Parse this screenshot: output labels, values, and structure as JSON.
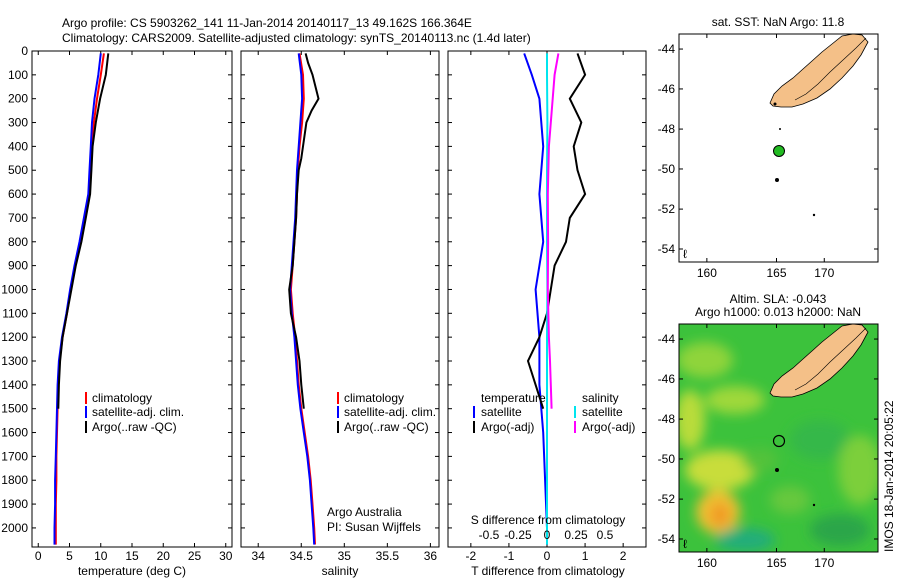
{
  "header": {
    "line1": "Argo profile: CS 5903262_141 11-Jan-2014 20140117_13 49.162S 166.364E",
    "line2": "Climatology: CARS2009. Satellite-adjusted climatology: synTS_20140113.nc (1.4d later)"
  },
  "colors": {
    "climatology": "#ff0000",
    "satellite": "#0000ff",
    "argo": "#000000",
    "s_satellite": "#00e5ee",
    "s_argo": "#ff00ff",
    "land": "#f4c088"
  },
  "chart_data": [
    {
      "id": "temperature",
      "type": "line",
      "xlabel": "temperature (deg C)",
      "ylabel": "",
      "xlim": [
        -1,
        31
      ],
      "ylim": [
        2080,
        0
      ],
      "xticks": [
        0,
        5,
        10,
        15,
        20,
        25,
        30
      ],
      "yticks": [
        0,
        100,
        200,
        300,
        400,
        500,
        600,
        700,
        800,
        900,
        1000,
        1100,
        1200,
        1300,
        1400,
        1500,
        1600,
        1700,
        1800,
        1900,
        2000
      ],
      "legend": [
        "climatology",
        "satellite-adj. clim.",
        "Argo(..raw -QC)"
      ],
      "series": [
        {
          "name": "climatology",
          "color": "#ff0000",
          "points": [
            [
              10.5,
              10
            ],
            [
              10.0,
              100
            ],
            [
              9.4,
              200
            ],
            [
              8.9,
              300
            ],
            [
              8.6,
              400
            ],
            [
              8.4,
              500
            ],
            [
              8.1,
              600
            ],
            [
              7.4,
              700
            ],
            [
              6.7,
              800
            ],
            [
              5.9,
              900
            ],
            [
              5.2,
              1000
            ],
            [
              4.6,
              1100
            ],
            [
              3.9,
              1200
            ],
            [
              3.4,
              1300
            ],
            [
              3.2,
              1400
            ],
            [
              3.1,
              1500
            ],
            [
              3.0,
              1600
            ],
            [
              2.9,
              1700
            ],
            [
              2.9,
              1800
            ],
            [
              2.8,
              1900
            ],
            [
              2.8,
              2000
            ],
            [
              2.8,
              2070
            ]
          ]
        },
        {
          "name": "satellite-adj. clim.",
          "color": "#0000ff",
          "points": [
            [
              10.0,
              10
            ],
            [
              9.6,
              100
            ],
            [
              9.0,
              200
            ],
            [
              8.6,
              300
            ],
            [
              8.4,
              400
            ],
            [
              8.2,
              500
            ],
            [
              8.0,
              600
            ],
            [
              7.3,
              700
            ],
            [
              6.6,
              800
            ],
            [
              5.8,
              900
            ],
            [
              5.1,
              1000
            ],
            [
              4.5,
              1100
            ],
            [
              3.8,
              1200
            ],
            [
              3.3,
              1300
            ],
            [
              3.1,
              1400
            ],
            [
              3.0,
              1500
            ],
            [
              2.9,
              1600
            ],
            [
              2.8,
              1700
            ],
            [
              2.7,
              1800
            ],
            [
              2.7,
              1900
            ],
            [
              2.6,
              2000
            ],
            [
              2.6,
              2070
            ]
          ]
        },
        {
          "name": "Argo(..raw -QC)",
          "color": "#000000",
          "points": [
            [
              11.2,
              10
            ],
            [
              10.8,
              100
            ],
            [
              9.9,
              200
            ],
            [
              9.2,
              300
            ],
            [
              8.7,
              400
            ],
            [
              8.5,
              500
            ],
            [
              8.3,
              600
            ],
            [
              7.6,
              700
            ],
            [
              6.9,
              800
            ],
            [
              6.0,
              900
            ],
            [
              5.3,
              1000
            ],
            [
              4.6,
              1100
            ],
            [
              3.9,
              1200
            ],
            [
              3.5,
              1300
            ],
            [
              3.3,
              1400
            ],
            [
              3.2,
              1500
            ]
          ]
        }
      ]
    },
    {
      "id": "salinity",
      "type": "line",
      "xlabel": "salinity",
      "ylabel": "",
      "xlim": [
        33.8,
        36.1
      ],
      "ylim": [
        2080,
        0
      ],
      "xticks": [
        34,
        34.5,
        35,
        35.5,
        36
      ],
      "legend": [
        "climatology",
        "satellite-adj. clim.",
        "Argo(..raw -QC)"
      ],
      "annotation": [
        "Argo Australia",
        "PI: Susan Wijffels"
      ],
      "series": [
        {
          "name": "climatology",
          "color": "#ff0000",
          "points": [
            [
              34.48,
              10
            ],
            [
              34.52,
              100
            ],
            [
              34.53,
              200
            ],
            [
              34.51,
              300
            ],
            [
              34.48,
              400
            ],
            [
              34.46,
              500
            ],
            [
              34.45,
              600
            ],
            [
              34.44,
              700
            ],
            [
              34.42,
              800
            ],
            [
              34.4,
              900
            ],
            [
              34.38,
              1000
            ],
            [
              34.4,
              1100
            ],
            [
              34.43,
              1200
            ],
            [
              34.45,
              1300
            ],
            [
              34.47,
              1400
            ],
            [
              34.5,
              1500
            ],
            [
              34.54,
              1600
            ],
            [
              34.58,
              1700
            ],
            [
              34.61,
              1800
            ],
            [
              34.63,
              1900
            ],
            [
              34.65,
              2000
            ],
            [
              34.66,
              2070
            ]
          ]
        },
        {
          "name": "satellite-adj. clim.",
          "color": "#0000ff",
          "points": [
            [
              34.47,
              10
            ],
            [
              34.5,
              100
            ],
            [
              34.51,
              200
            ],
            [
              34.49,
              300
            ],
            [
              34.47,
              400
            ],
            [
              34.45,
              500
            ],
            [
              34.44,
              600
            ],
            [
              34.43,
              700
            ],
            [
              34.41,
              800
            ],
            [
              34.39,
              900
            ],
            [
              34.37,
              1000
            ],
            [
              34.39,
              1100
            ],
            [
              34.42,
              1200
            ],
            [
              34.44,
              1300
            ],
            [
              34.46,
              1400
            ],
            [
              34.49,
              1500
            ],
            [
              34.53,
              1600
            ],
            [
              34.57,
              1700
            ],
            [
              34.6,
              1800
            ],
            [
              34.62,
              1900
            ],
            [
              34.64,
              2000
            ],
            [
              34.65,
              2070
            ]
          ]
        },
        {
          "name": "Argo(..raw -QC)",
          "color": "#000000",
          "points": [
            [
              34.55,
              10
            ],
            [
              34.58,
              50
            ],
            [
              34.63,
              100
            ],
            [
              34.7,
              200
            ],
            [
              34.62,
              250
            ],
            [
              34.56,
              300
            ],
            [
              34.52,
              400
            ],
            [
              34.5,
              450
            ],
            [
              34.47,
              500
            ],
            [
              34.45,
              600
            ],
            [
              34.44,
              700
            ],
            [
              34.42,
              800
            ],
            [
              34.4,
              900
            ],
            [
              34.36,
              1000
            ],
            [
              34.38,
              1100
            ],
            [
              34.44,
              1200
            ],
            [
              34.48,
              1300
            ],
            [
              34.5,
              1400
            ],
            [
              34.53,
              1500
            ]
          ]
        }
      ]
    },
    {
      "id": "difference",
      "type": "line",
      "xlabel": "T difference from climatology",
      "top_label": "S difference from climatology",
      "xlim": [
        -2.6,
        2.6
      ],
      "ylim": [
        2080,
        0
      ],
      "xticks": [
        -2,
        -1,
        0,
        1,
        2
      ],
      "sticks": [
        "-0.5",
        "-0.25",
        "0",
        "0.25",
        "0.5"
      ],
      "legend_titles": [
        "temperature",
        "salinity"
      ],
      "legend": [
        [
          "satellite",
          "Argo(-adj)"
        ],
        [
          "satellite",
          "Argo(-adj)"
        ]
      ],
      "series": [
        {
          "name": "temperature satellite",
          "color": "#0000ff",
          "points": [
            [
              -0.6,
              10
            ],
            [
              -0.4,
              100
            ],
            [
              -0.2,
              200
            ],
            [
              -0.1,
              400
            ],
            [
              -0.2,
              600
            ],
            [
              -0.1,
              800
            ],
            [
              -0.3,
              1000
            ],
            [
              -0.2,
              1200
            ],
            [
              -0.2,
              1400
            ],
            [
              -0.1,
              1600
            ],
            [
              -0.05,
              1800
            ],
            [
              0,
              2000
            ],
            [
              0,
              2070
            ]
          ]
        },
        {
          "name": "temperature Argo(-adj)",
          "color": "#000000",
          "points": [
            [
              0.8,
              10
            ],
            [
              1.0,
              100
            ],
            [
              0.6,
              200
            ],
            [
              0.9,
              300
            ],
            [
              0.7,
              400
            ],
            [
              0.8,
              500
            ],
            [
              1.0,
              600
            ],
            [
              0.6,
              700
            ],
            [
              0.5,
              800
            ],
            [
              0.2,
              900
            ],
            [
              0.1,
              1000
            ],
            [
              0.0,
              1100
            ],
            [
              -0.2,
              1200
            ],
            [
              -0.5,
              1300
            ],
            [
              -0.3,
              1400
            ],
            [
              -0.1,
              1500
            ]
          ]
        },
        {
          "name": "salinity satellite",
          "color": "#00e5ee",
          "points": [
            [
              0,
              10
            ],
            [
              0,
              100
            ],
            [
              0.01,
              300
            ],
            [
              0,
              500
            ],
            [
              0,
              800
            ],
            [
              0.01,
              1000
            ],
            [
              0,
              1200
            ],
            [
              0,
              1400
            ],
            [
              0,
              1600
            ],
            [
              0,
              2000
            ],
            [
              0,
              2070
            ]
          ]
        },
        {
          "name": "salinity Argo(-adj)",
          "color": "#ff00ff",
          "points": [
            [
              0.3,
              10
            ],
            [
              0.2,
              100
            ],
            [
              0.15,
              200
            ],
            [
              0.05,
              400
            ],
            [
              0.02,
              600
            ],
            [
              0.03,
              800
            ],
            [
              0.02,
              1000
            ],
            [
              0.05,
              1200
            ],
            [
              0.08,
              1300
            ],
            [
              0.1,
              1400
            ],
            [
              0.12,
              1500
            ]
          ]
        }
      ]
    }
  ],
  "map_sst": {
    "title": "sat. SST: NaN Argo: 11.8",
    "lon_ticks": [
      "160",
      "165",
      "170"
    ],
    "lat_ticks": [
      "-44",
      "-46",
      "-48",
      "-50",
      "-52",
      "-54"
    ]
  },
  "map_sla": {
    "title1": "Altim. SLA: -0.043",
    "title2": "Argo h1000: 0.013 h2000: NaN",
    "lon_ticks": [
      "160",
      "165",
      "170"
    ],
    "lat_ticks": [
      "-44",
      "-46",
      "-48",
      "-50",
      "-52",
      "-54"
    ],
    "credit": "IMOS 18-Jan-2014 20:05:22"
  }
}
